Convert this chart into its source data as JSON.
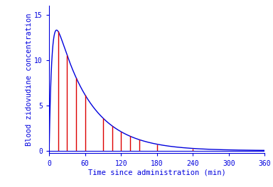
{
  "title": "",
  "xlabel": "Time since administration (min)",
  "ylabel": "Blood zidovudine concentration",
  "xlim": [
    0,
    360
  ],
  "ylim": [
    -0.3,
    16
  ],
  "yticks": [
    0,
    5,
    10,
    15
  ],
  "xticks": [
    0,
    60,
    120,
    180,
    240,
    300,
    360
  ],
  "curve_color": "#0000dd",
  "vline_color": "#dd0000",
  "background_color": "#ffffff",
  "text_color": "#0000dd",
  "absorption_rate": 0.22,
  "elimination_rate": 0.018,
  "amplitude": 14.0,
  "data_times": [
    15,
    30,
    45,
    60,
    90,
    105,
    120,
    135,
    150,
    180,
    240
  ],
  "figsize": [
    3.84,
    2.64
  ],
  "dpi": 100
}
